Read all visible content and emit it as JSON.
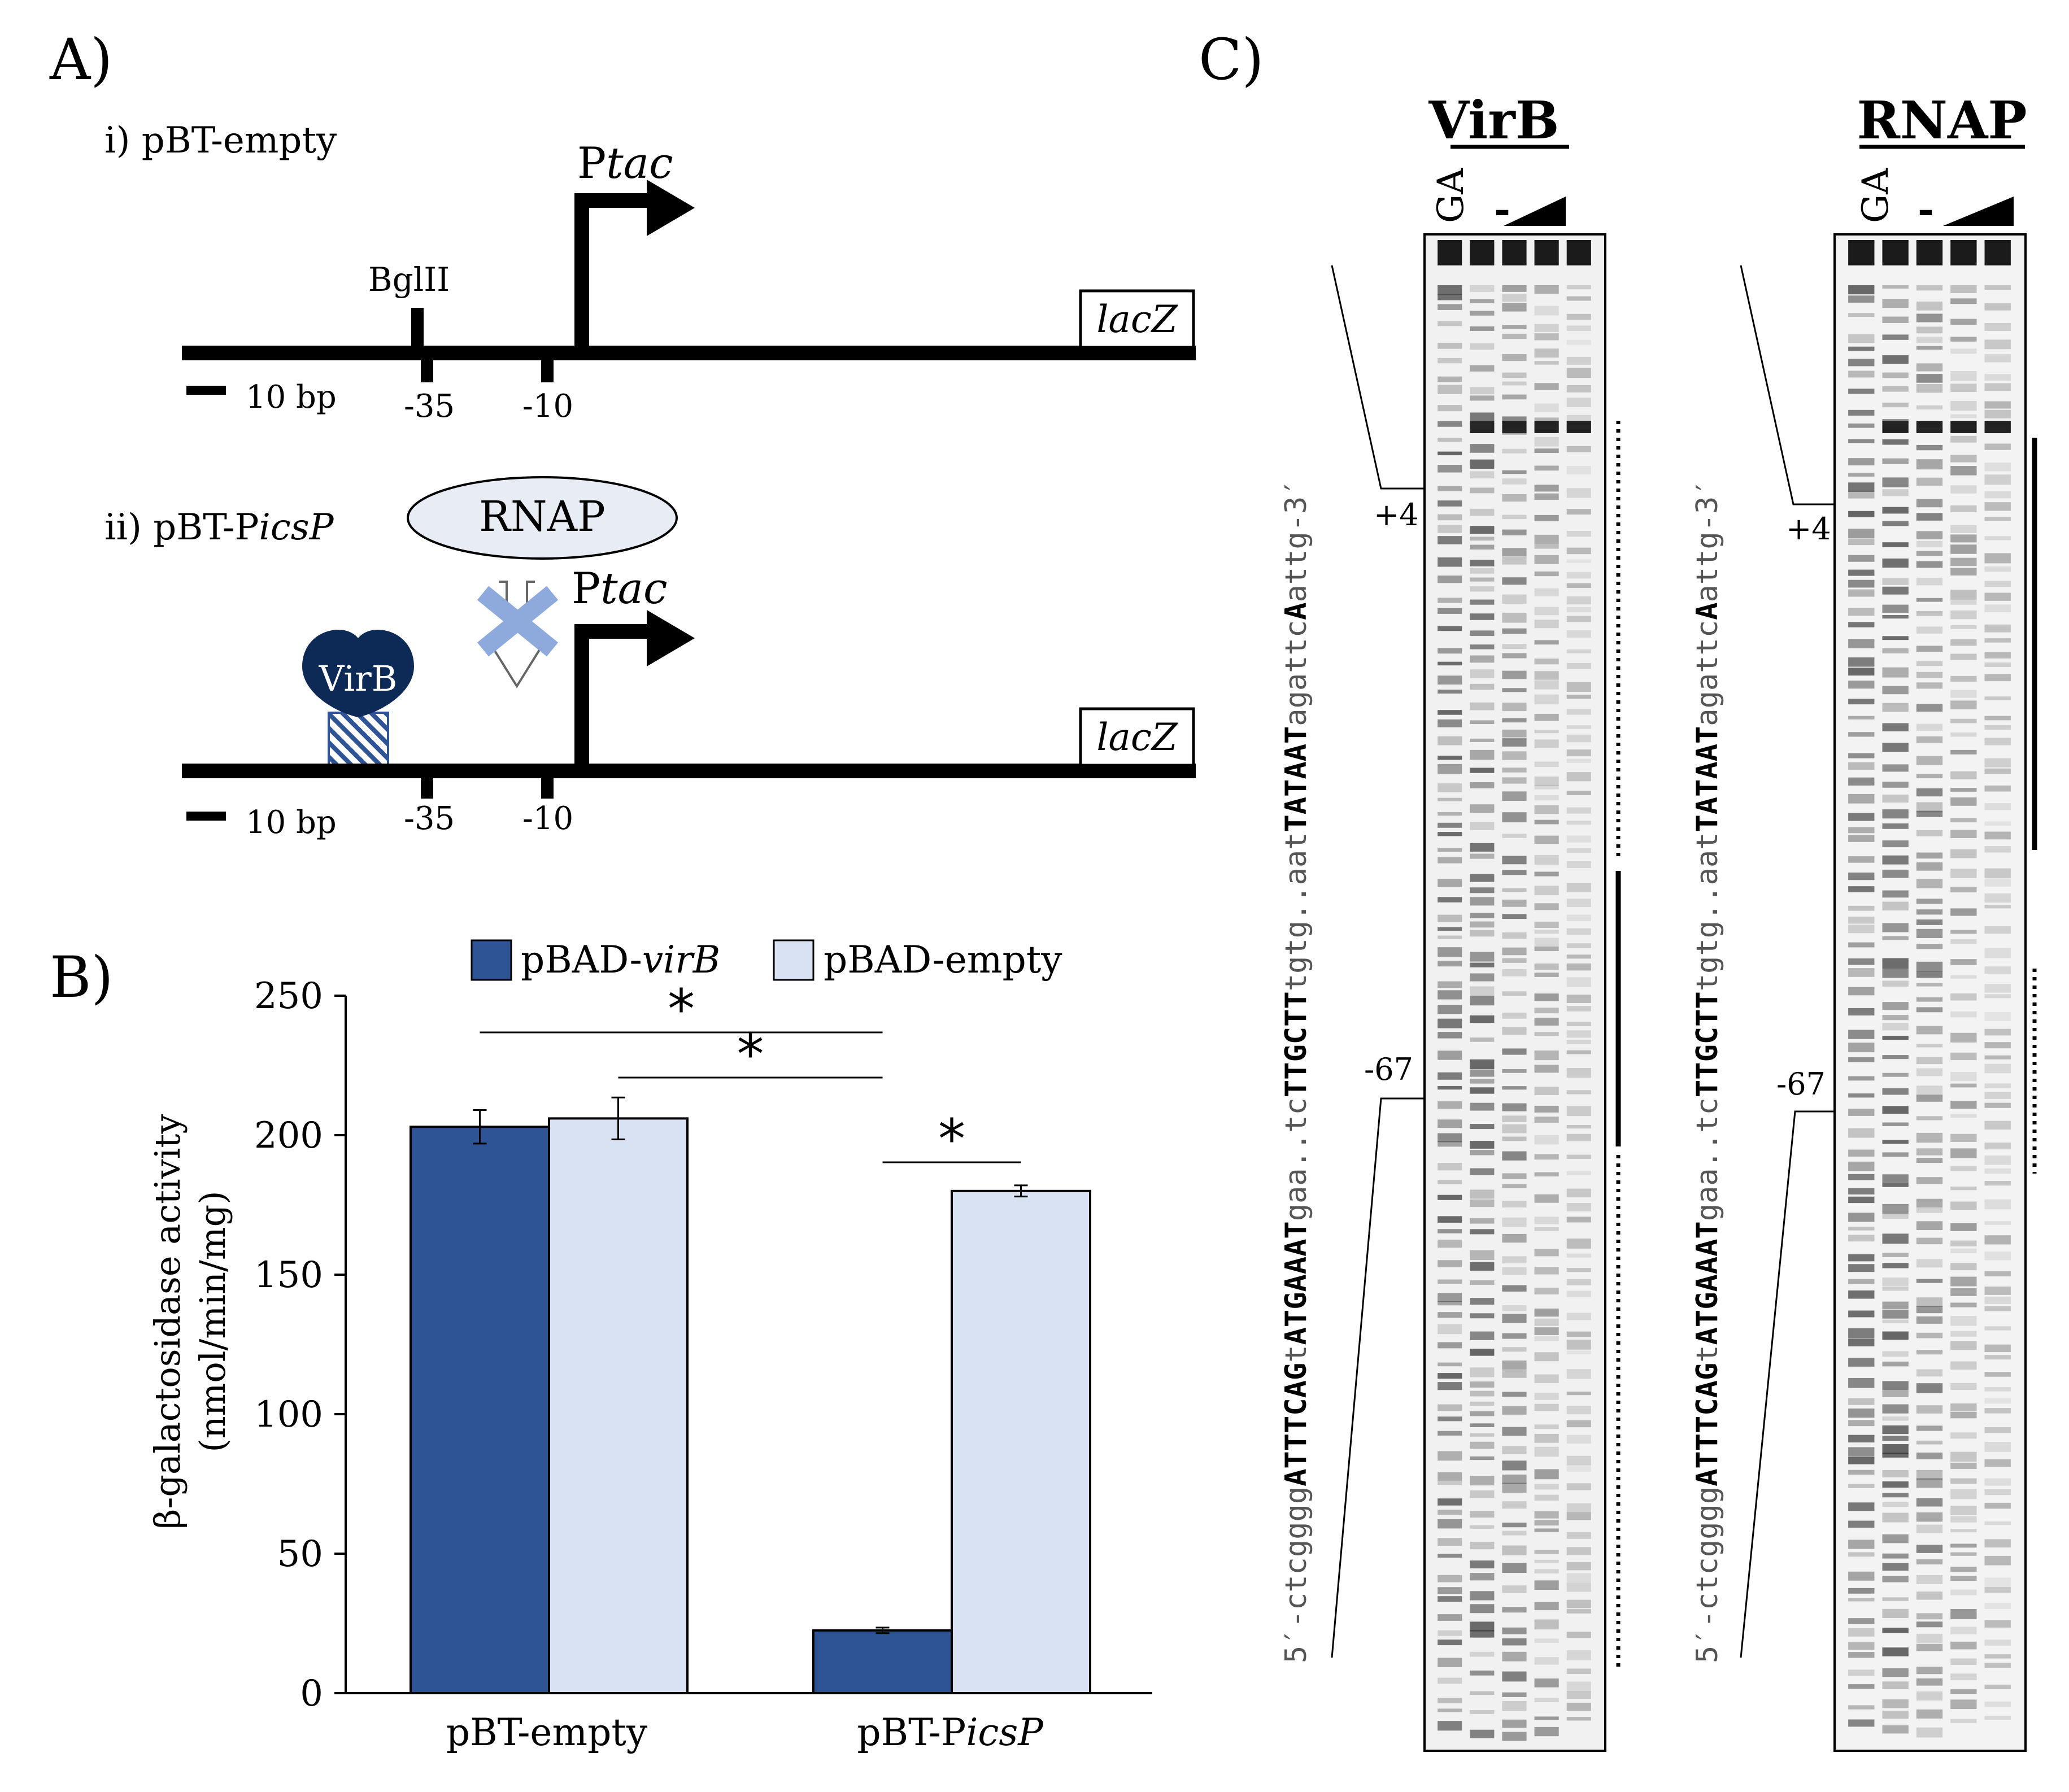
{
  "colors": {
    "virb_bar": "#2f5496",
    "empty_bar": "#d9e2f3",
    "virb_protein": "#0d2a57",
    "rnap_fill": "#e8edf5",
    "block_arrow_x": "#8ea9db",
    "gel_band": "#2a2a2a"
  },
  "panel_a": {
    "label": "A)",
    "construct_1": {
      "title": "i) pBT-empty",
      "restriction_site": "BglII",
      "promoter_prefix": "P",
      "promoter_suffix": "tac",
      "reporter": "lacZ",
      "pos_35": "-35",
      "pos_10": "-10",
      "scale": "10 bp"
    },
    "construct_2": {
      "title_prefix": "ii) pBT-P",
      "title_italic": "icsP",
      "rnap": "RNAP",
      "virb": "VirB",
      "promoter_prefix": "P",
      "promoter_suffix": "tac",
      "reporter": "lacZ",
      "pos_35": "-35",
      "pos_10": "-10",
      "scale": "10 bp"
    }
  },
  "panel_b": {
    "label": "B)",
    "legend": [
      {
        "prefix": "pBAD-",
        "italic": "virB"
      },
      {
        "prefix": "pBAD-empty",
        "italic": ""
      }
    ],
    "ylabel_line1": "β-galactosidase activity",
    "ylabel_line2": "(nmol/min/mg)",
    "x_label_1": "pBT-empty",
    "x_label_2_prefix": "pBT-P",
    "x_label_2_italic": "icsP",
    "significance": "*"
  },
  "chart_data": {
    "type": "bar",
    "title": "",
    "xlabel": "",
    "ylabel": "β-galactosidase activity (nmol/min/mg)",
    "ylim": [
      0,
      250
    ],
    "yticks": [
      0,
      50,
      100,
      150,
      200,
      250
    ],
    "categories": [
      "pBT-empty",
      "pBT-PicsP"
    ],
    "series": [
      {
        "name": "pBAD-virB",
        "values": [
          203,
          22.5
        ],
        "errors": [
          6,
          1
        ]
      },
      {
        "name": "pBAD-empty",
        "values": [
          206,
          180
        ],
        "errors": [
          7.5,
          2
        ]
      }
    ],
    "significance_brackets": [
      {
        "from": "pBT-empty / pBAD-virB",
        "to": "pBT-PicsP / pBAD-virB",
        "label": "*"
      },
      {
        "from": "pBT-empty / pBAD-empty",
        "to": "pBT-PicsP / pBAD-virB",
        "label": "*"
      },
      {
        "from": "pBT-PicsP / pBAD-virB",
        "to": "pBT-PicsP / pBAD-empty",
        "label": "*"
      }
    ],
    "legend_position": "top"
  },
  "panel_c": {
    "label": "C)",
    "gels": [
      {
        "title": "VirB",
        "lane_ga": "GA",
        "lane_minus": "-",
        "marker_top": "+4",
        "marker_bottom": "-67"
      },
      {
        "title": "RNAP",
        "lane_ga": "GA",
        "lane_minus": "-",
        "marker_top": "+4",
        "marker_bottom": "-67"
      }
    ],
    "sequence": [
      {
        "text": "5′-ctcgggg",
        "bold": false
      },
      {
        "text": "ATTTCAG",
        "bold": true
      },
      {
        "text": "t",
        "bold": false
      },
      {
        "text": "ATGAAAT",
        "bold": true
      },
      {
        "text": "gaa..tc",
        "bold": false
      },
      {
        "text": "TTGCTT",
        "bold": true
      },
      {
        "text": "tgtg..aat",
        "bold": false
      },
      {
        "text": "TATAAT",
        "bold": true
      },
      {
        "text": "agattc",
        "bold": false
      },
      {
        "text": "A",
        "bold": true
      },
      {
        "text": "attg-3′",
        "bold": false
      }
    ]
  }
}
